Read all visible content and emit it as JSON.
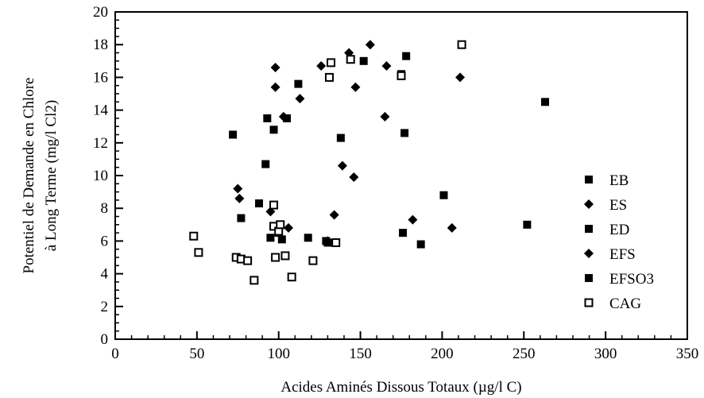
{
  "chart_data": {
    "type": "scatter",
    "xlabel": "Acides Aminés Dissous Totaux (µg/l C)",
    "ylabel_lines": [
      "Potentiel de Demande en Chlore",
      "à Long Terme (mg/l Cl2)"
    ],
    "xlim": [
      0,
      350
    ],
    "ylim": [
      0,
      20
    ],
    "xticks": [
      0,
      50,
      100,
      150,
      200,
      250,
      300,
      350
    ],
    "yticks": [
      0,
      2,
      4,
      6,
      8,
      10,
      12,
      14,
      16,
      18,
      20
    ],
    "grid": false,
    "legend_position": "right",
    "series": [
      {
        "name": "EB",
        "marker": "square-filled",
        "points": [
          [
            72,
            12.5
          ],
          [
            92,
            10.7
          ],
          [
            93,
            13.5
          ],
          [
            97,
            12.8
          ],
          [
            100,
            6.5
          ],
          [
            105,
            13.5
          ],
          [
            112,
            15.6
          ],
          [
            118,
            6.2
          ],
          [
            138,
            12.3
          ],
          [
            152,
            17.0
          ],
          [
            177,
            12.6
          ],
          [
            176,
            6.5
          ]
        ]
      },
      {
        "name": "ES",
        "marker": "diamond-filled",
        "points": [
          [
            75,
            9.2
          ],
          [
            76,
            8.6
          ],
          [
            98,
            16.6
          ],
          [
            98,
            15.4
          ],
          [
            103,
            13.6
          ],
          [
            113,
            14.7
          ],
          [
            126,
            16.7
          ],
          [
            130,
            6.0
          ],
          [
            139,
            10.6
          ],
          [
            143,
            17.5
          ],
          [
            146,
            9.9
          ],
          [
            147,
            15.4
          ],
          [
            156,
            18.0
          ],
          [
            165,
            13.6
          ],
          [
            166,
            16.7
          ],
          [
            182,
            7.3
          ],
          [
            206,
            6.8
          ],
          [
            211,
            16.0
          ]
        ]
      },
      {
        "name": "ED",
        "marker": "square-filled",
        "points": [
          [
            77,
            7.4
          ],
          [
            88,
            8.3
          ],
          [
            95,
            6.2
          ],
          [
            102,
            6.1
          ],
          [
            129,
            6.0
          ],
          [
            187,
            5.8
          ],
          [
            201,
            8.8
          ],
          [
            252,
            7.0
          ],
          [
            263,
            14.5
          ]
        ]
      },
      {
        "name": "EFS",
        "marker": "diamond-filled",
        "points": [
          [
            95,
            7.8
          ],
          [
            106,
            6.8
          ],
          [
            134,
            7.6
          ]
        ]
      },
      {
        "name": "EFSO3",
        "marker": "square-filled",
        "points": [
          [
            130,
            5.9
          ],
          [
            175,
            16.2
          ],
          [
            178,
            17.3
          ]
        ]
      },
      {
        "name": "CAG",
        "marker": "square-open",
        "points": [
          [
            48,
            6.3
          ],
          [
            51,
            5.3
          ],
          [
            74,
            5.0
          ],
          [
            77,
            4.9
          ],
          [
            81,
            4.8
          ],
          [
            85,
            3.6
          ],
          [
            97,
            8.2
          ],
          [
            97,
            6.9
          ],
          [
            98,
            5.0
          ],
          [
            100,
            6.6
          ],
          [
            101,
            7.0
          ],
          [
            104,
            5.1
          ],
          [
            108,
            3.8
          ],
          [
            121,
            4.8
          ],
          [
            131,
            16.0
          ],
          [
            132,
            16.9
          ],
          [
            135,
            5.9
          ],
          [
            144,
            17.1
          ],
          [
            175,
            16.1
          ],
          [
            212,
            18.0
          ]
        ]
      }
    ]
  },
  "colors": {
    "ink": "#000000",
    "background": "#ffffff"
  }
}
